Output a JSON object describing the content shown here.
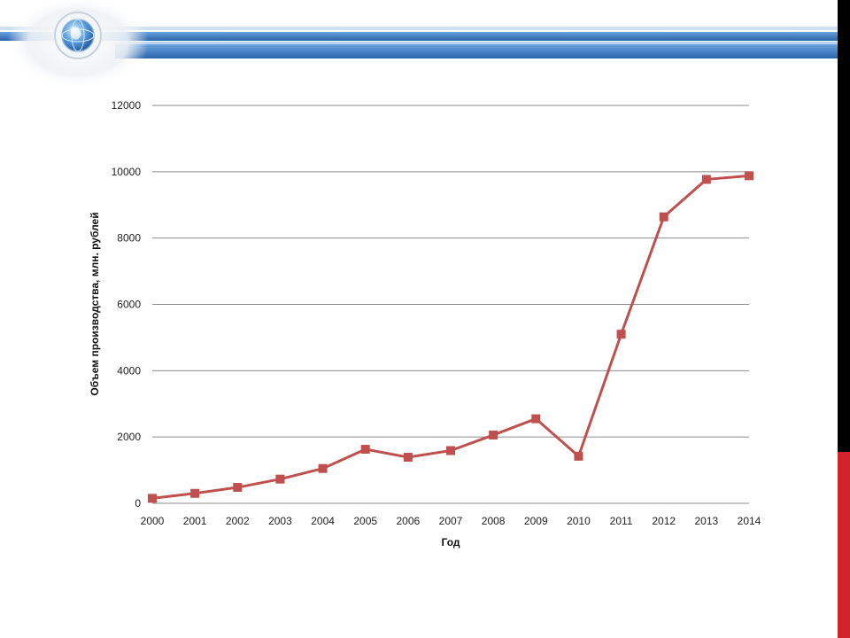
{
  "colors": {
    "series": "#c0504d",
    "header_blue": "#2e6db4",
    "header_light": "#9ec3ea",
    "sidebar_black": "#000000",
    "sidebar_red": "#d2232a",
    "gridline": "#8c8c8c"
  },
  "header": {
    "logo_icon": "globe-icon"
  },
  "chart_data": {
    "type": "line",
    "title": "",
    "xlabel": "Год",
    "ylabel": "Объем производства, млн. рублей",
    "x": [
      "2000",
      "2001",
      "2002",
      "2003",
      "2004",
      "2005",
      "2006",
      "2007",
      "2008",
      "2009",
      "2010",
      "2011",
      "2012",
      "2013",
      "2014"
    ],
    "series": [
      {
        "name": "",
        "values": [
          150,
          300,
          480,
          730,
          1050,
          1630,
          1390,
          1590,
          2060,
          2550,
          1420,
          5100,
          8640,
          9770,
          9880
        ],
        "marker": "square"
      }
    ],
    "ylim": [
      0,
      12000
    ],
    "yticks": [
      "0",
      "2000",
      "4000",
      "6000",
      "8000",
      "10000",
      "12000"
    ],
    "grid": true,
    "legend": "none"
  }
}
